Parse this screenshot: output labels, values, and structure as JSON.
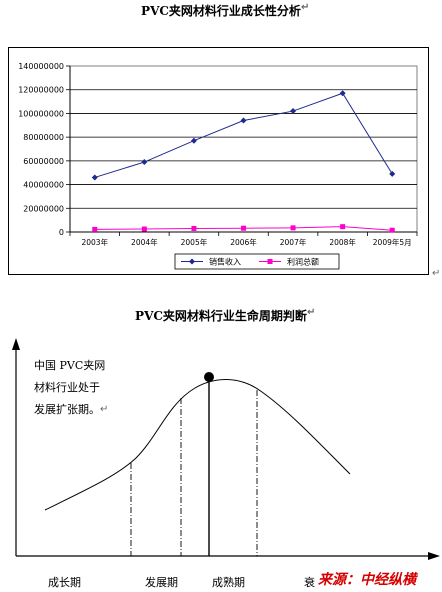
{
  "top_title": "PVC夹网材料行业成长性分析",
  "chart_data": [
    {
      "type": "line",
      "title": "",
      "xlabel": "",
      "ylabel": "",
      "categories": [
        "2003年",
        "2004年",
        "2005年",
        "2006年",
        "2007年",
        "2008年",
        "2009年5月"
      ],
      "ylim": [
        0,
        140000000
      ],
      "yticks": [
        "0",
        "20000000",
        "40000000",
        "60000000",
        "80000000",
        "100000000",
        "120000000",
        "140000000"
      ],
      "grid": true,
      "legend_position": "bottom",
      "series": [
        {
          "name": "销售收入",
          "color": "#1f2a8f",
          "marker": "diamond",
          "values": [
            46000000,
            59000000,
            77000000,
            94000000,
            102000000,
            117000000,
            49000000
          ]
        },
        {
          "name": "利润总额",
          "color": "#ff00cc",
          "marker": "square",
          "values": [
            2200000,
            2500000,
            3000000,
            3200000,
            3500000,
            4500000,
            1500000
          ]
        }
      ]
    },
    {
      "type": "line",
      "title": "PVC夹网材料行业生命周期判断",
      "stages": [
        "成长期",
        "发展期",
        "成熟期",
        "衰"
      ],
      "note_lines": [
        "中国 PVC夹网",
        "材料行业处于",
        "发展扩张期。"
      ]
    }
  ],
  "source": "来源：中经纵横",
  "paragraph_mark": "↵",
  "colors": {
    "axis": "#000000",
    "grid": "#000000",
    "source": "#d60000"
  }
}
